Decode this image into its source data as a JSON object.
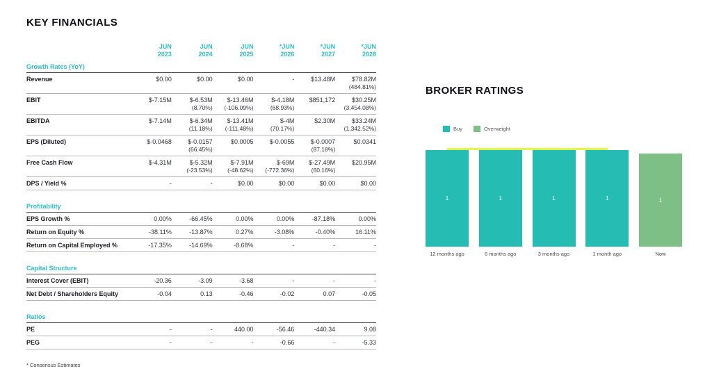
{
  "colors": {
    "table_accent": "#30bec4",
    "buy": "#25bcb3",
    "overweight": "#7dbf84",
    "trend_yellow": "#e8f54a",
    "row_line": "#b5b5b5",
    "section_line": "#4a4a4a"
  },
  "key_financials": {
    "title": "KEY FINANCIALS",
    "columns": [
      {
        "l1": "JUN",
        "l2": "2023"
      },
      {
        "l1": "JUN",
        "l2": "2024"
      },
      {
        "l1": "JUN",
        "l2": "2025"
      },
      {
        "l1": "*JUN",
        "l2": "2026"
      },
      {
        "l1": "*JUN",
        "l2": "2027"
      },
      {
        "l1": "*JUN",
        "l2": "2028"
      }
    ],
    "sections": [
      {
        "name": "Growth Rates (YoY)",
        "rows": [
          {
            "label": "Revenue",
            "cells": [
              {
                "v": "$0.00"
              },
              {
                "v": "$0.00"
              },
              {
                "v": "$0.00"
              },
              {
                "v": "-"
              },
              {
                "v": "$13.48M"
              },
              {
                "v": "$78.82M",
                "s": "(484.81%)"
              }
            ]
          },
          {
            "label": "EBIT",
            "cells": [
              {
                "v": "$-7.15M"
              },
              {
                "v": "$-6.53M",
                "s": "(8.70%)"
              },
              {
                "v": "$-13.46M",
                "s": "(-106.09%)"
              },
              {
                "v": "$-4.18M",
                "s": "(68.93%)"
              },
              {
                "v": "$851,172"
              },
              {
                "v": "$30.25M",
                "s": "(3,454.08%)"
              }
            ]
          },
          {
            "label": "EBITDA",
            "cells": [
              {
                "v": "$-7.14M"
              },
              {
                "v": "$-6.34M",
                "s": "(11.18%)"
              },
              {
                "v": "$-13.41M",
                "s": "(-111.48%)"
              },
              {
                "v": "$-4M",
                "s": "(70.17%)"
              },
              {
                "v": "$2.30M"
              },
              {
                "v": "$33.24M",
                "s": "(1,342.52%)"
              }
            ]
          },
          {
            "label": "EPS (Diluted)",
            "cells": [
              {
                "v": "$-0.0468"
              },
              {
                "v": "$-0.0157",
                "s": "(66.45%)"
              },
              {
                "v": "$0.0005"
              },
              {
                "v": "$-0.0055"
              },
              {
                "v": "$-0.0007",
                "s": "(87.18%)"
              },
              {
                "v": "$0.0341"
              }
            ]
          },
          {
            "label": "Free Cash Flow",
            "cells": [
              {
                "v": "$-4.31M"
              },
              {
                "v": "$-5.32M",
                "s": "(-23.53%)"
              },
              {
                "v": "$-7.91M",
                "s": "(-48.62%)"
              },
              {
                "v": "$-69M",
                "s": "(-772.36%)"
              },
              {
                "v": "$-27.49M",
                "s": "(60.16%)"
              },
              {
                "v": "$20.95M"
              }
            ]
          },
          {
            "label": "DPS / Yield %",
            "cells": [
              {
                "v": "-"
              },
              {
                "v": "-"
              },
              {
                "v": "$0.00"
              },
              {
                "v": "$0.00"
              },
              {
                "v": "$0.00"
              },
              {
                "v": "$0.00"
              }
            ]
          }
        ]
      },
      {
        "name": "Profitability",
        "rows": [
          {
            "label": "EPS Growth %",
            "cells": [
              {
                "v": "0.00%"
              },
              {
                "v": "-66.45%"
              },
              {
                "v": "0.00%"
              },
              {
                "v": "0.00%"
              },
              {
                "v": "-87.18%"
              },
              {
                "v": "0.00%"
              }
            ]
          },
          {
            "label": "Return on Equity %",
            "cells": [
              {
                "v": "-38.11%"
              },
              {
                "v": "-13.87%"
              },
              {
                "v": "0.27%"
              },
              {
                "v": "-3.08%"
              },
              {
                "v": "-0.40%"
              },
              {
                "v": "16.11%"
              }
            ]
          },
          {
            "label": "Return on Capital Employed %",
            "cells": [
              {
                "v": "-17.35%"
              },
              {
                "v": "-14.69%"
              },
              {
                "v": "-8.68%"
              },
              {
                "v": "-"
              },
              {
                "v": "-"
              },
              {
                "v": "-"
              }
            ]
          }
        ]
      },
      {
        "name": "Capital Structure",
        "rows": [
          {
            "label": "Interest Cover (EBIT)",
            "cells": [
              {
                "v": "-20.36"
              },
              {
                "v": "-3.09"
              },
              {
                "v": "-3.68"
              },
              {
                "v": "-"
              },
              {
                "v": "-"
              },
              {
                "v": "-"
              }
            ]
          },
          {
            "label": "Net Debt / Shareholders Equity",
            "cells": [
              {
                "v": "-0.04"
              },
              {
                "v": "0.13"
              },
              {
                "v": "-0.46"
              },
              {
                "v": "-0.02"
              },
              {
                "v": "0.07"
              },
              {
                "v": "-0.05"
              }
            ]
          }
        ]
      },
      {
        "name": "Ratios",
        "rows": [
          {
            "label": "PE",
            "cells": [
              {
                "v": "-"
              },
              {
                "v": "-"
              },
              {
                "v": "440.00"
              },
              {
                "v": "-56.46"
              },
              {
                "v": "-440.34"
              },
              {
                "v": "9.08"
              }
            ]
          },
          {
            "label": "PEG",
            "cells": [
              {
                "v": "-"
              },
              {
                "v": "-"
              },
              {
                "v": "-"
              },
              {
                "v": "-0.66"
              },
              {
                "v": "-"
              },
              {
                "v": "-5.33"
              }
            ]
          }
        ]
      }
    ],
    "footnote": "* Consensus Estimates"
  },
  "broker_ratings": {
    "title": "BROKER RATINGS",
    "legend": [
      {
        "label": "Buy",
        "color": "#25bcb3"
      },
      {
        "label": "Overweight",
        "color": "#7dbf84"
      }
    ],
    "bars": [
      {
        "label": "12 months ago",
        "value": "1",
        "series": "Buy"
      },
      {
        "label": "6 months ago",
        "value": "1",
        "series": "Buy"
      },
      {
        "label": "3 months ago",
        "value": "1",
        "series": "Buy"
      },
      {
        "label": "1 month ago",
        "value": "1",
        "series": "Buy"
      },
      {
        "label": "Now",
        "value": "1",
        "series": "Overweight"
      }
    ],
    "trend_line": {
      "color": "#e8f54a"
    }
  },
  "chart_data": [
    {
      "type": "table",
      "title": "KEY FINANCIALS",
      "columns": [
        "",
        "JUN 2023",
        "JUN 2024",
        "JUN 2025",
        "*JUN 2026",
        "*JUN 2027",
        "*JUN 2028"
      ],
      "sections": [
        {
          "name": "Growth Rates (YoY)",
          "rows": [
            [
              "Revenue",
              "$0.00",
              "$0.00",
              "$0.00",
              "-",
              "$13.48M",
              "$78.82M (484.81%)"
            ],
            [
              "EBIT",
              "$-7.15M",
              "$-6.53M (8.70%)",
              "$-13.46M (-106.09%)",
              "$-4.18M (68.93%)",
              "$851,172",
              "$30.25M (3,454.08%)"
            ],
            [
              "EBITDA",
              "$-7.14M",
              "$-6.34M (11.18%)",
              "$-13.41M (-111.48%)",
              "$-4M (70.17%)",
              "$2.30M",
              "$33.24M (1,342.52%)"
            ],
            [
              "EPS (Diluted)",
              "$-0.0468",
              "$-0.0157 (66.45%)",
              "$0.0005",
              "$-0.0055",
              "$-0.0007 (87.18%)",
              "$0.0341"
            ],
            [
              "Free Cash Flow",
              "$-4.31M",
              "$-5.32M (-23.53%)",
              "$-7.91M (-48.62%)",
              "$-69M (-772.36%)",
              "$-27.49M (60.16%)",
              "$20.95M"
            ],
            [
              "DPS / Yield %",
              "-",
              "-",
              "$0.00",
              "$0.00",
              "$0.00",
              "$0.00"
            ]
          ]
        },
        {
          "name": "Profitability",
          "rows": [
            [
              "EPS Growth %",
              "0.00%",
              "-66.45%",
              "0.00%",
              "0.00%",
              "-87.18%",
              "0.00%"
            ],
            [
              "Return on Equity %",
              "-38.11%",
              "-13.87%",
              "0.27%",
              "-3.08%",
              "-0.40%",
              "16.11%"
            ],
            [
              "Return on Capital Employed %",
              "-17.35%",
              "-14.69%",
              "-8.68%",
              "-",
              "-",
              "-"
            ]
          ]
        },
        {
          "name": "Capital Structure",
          "rows": [
            [
              "Interest Cover (EBIT)",
              "-20.36",
              "-3.09",
              "-3.68",
              "-",
              "-",
              "-"
            ],
            [
              "Net Debt / Shareholders Equity",
              "-0.04",
              "0.13",
              "-0.46",
              "-0.02",
              "0.07",
              "-0.05"
            ]
          ]
        },
        {
          "name": "Ratios",
          "rows": [
            [
              "PE",
              "-",
              "-",
              "440.00",
              "-56.46",
              "-440.34",
              "9.08"
            ],
            [
              "PEG",
              "-",
              "-",
              "-",
              "-0.66",
              "-",
              "-5.33"
            ]
          ]
        }
      ],
      "footnote": "* Consensus Estimates"
    },
    {
      "type": "bar",
      "title": "BROKER RATINGS",
      "categories": [
        "12 months ago",
        "6 months ago",
        "3 months ago",
        "1 month ago",
        "Now"
      ],
      "series": [
        {
          "name": "Buy",
          "color": "#25bcb3",
          "values": [
            1,
            1,
            1,
            1,
            0
          ]
        },
        {
          "name": "Overweight",
          "color": "#7dbf84",
          "values": [
            0,
            0,
            0,
            0,
            1
          ]
        }
      ],
      "bar_value_labels": [
        "1",
        "1",
        "1",
        "1",
        "1"
      ],
      "annotations": [
        {
          "type": "line",
          "color": "#e8f54a",
          "y": 1,
          "x_from": "12 months ago",
          "x_to": "1 month ago"
        }
      ],
      "ylim": [
        0,
        1
      ],
      "grid": false,
      "legend_position": "top-left",
      "xlabel": "",
      "ylabel": ""
    }
  ]
}
